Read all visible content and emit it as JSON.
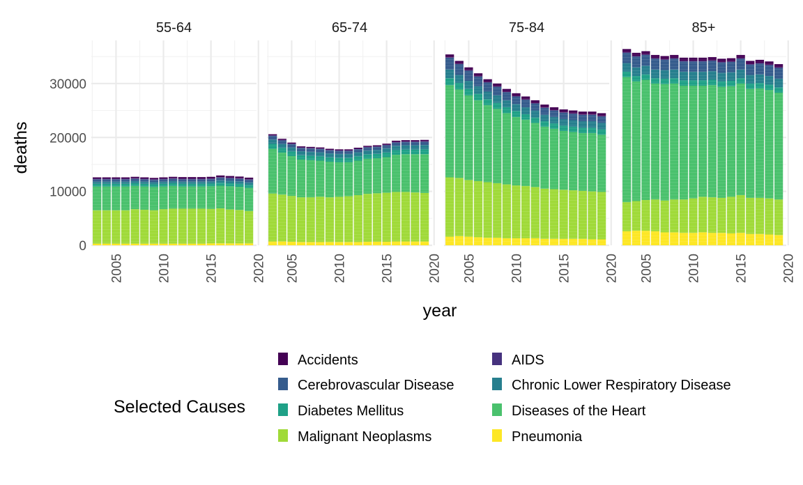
{
  "chart_data": {
    "type": "bar",
    "stacked": true,
    "xlabel": "year",
    "ylabel": "deaths",
    "x_ticks": [
      2005,
      2010,
      2015,
      2020
    ],
    "y_ticks": [
      0,
      10000,
      20000,
      30000
    ],
    "ylim": [
      0,
      38000
    ],
    "xlim": [
      2002.4,
      2019.8
    ],
    "grid": true,
    "legend": {
      "title": "Selected Causes",
      "placement": "bottom",
      "entries": [
        {
          "name": "Accidents",
          "color": "#440154"
        },
        {
          "name": "AIDS",
          "color": "#46327e"
        },
        {
          "name": "Cerebrovascular Disease",
          "color": "#365c8d"
        },
        {
          "name": "Chronic Lower Respiratory Disease",
          "color": "#277f8e"
        },
        {
          "name": "Diabetes Mellitus",
          "color": "#1fa187"
        },
        {
          "name": "Diseases of the Heart",
          "color": "#4ac16d"
        },
        {
          "name": "Malignant Neoplasms",
          "color": "#a0da39"
        },
        {
          "name": "Pneumonia",
          "color": "#fde725"
        }
      ]
    },
    "stack_order_bottom_to_top": [
      "Pneumonia",
      "Malignant Neoplasms",
      "Diseases of the Heart",
      "Diabetes Mellitus",
      "Chronic Lower Respiratory Disease",
      "Cerebrovascular Disease",
      "AIDS",
      "Accidents"
    ],
    "years": [
      2003,
      2004,
      2005,
      2006,
      2007,
      2008,
      2009,
      2010,
      2011,
      2012,
      2013,
      2014,
      2015,
      2016,
      2017,
      2018,
      2019
    ],
    "panels": [
      {
        "label": "55-64",
        "series": [
          {
            "name": "Pneumonia",
            "values": [
              300,
              300,
              300,
              300,
              300,
              300,
              300,
              300,
              300,
              300,
              300,
              300,
              350,
              350,
              350,
              350,
              350
            ]
          },
          {
            "name": "Malignant Neoplasms",
            "values": [
              6200,
              6200,
              6200,
              6200,
              6400,
              6300,
              6200,
              6400,
              6500,
              6500,
              6500,
              6500,
              6400,
              6500,
              6300,
              6200,
              6000
            ]
          },
          {
            "name": "Diseases of the Heart",
            "values": [
              4400,
              4400,
              4400,
              4400,
              4300,
              4300,
              4300,
              4200,
              4200,
              4100,
              4100,
              4100,
              4200,
              4200,
              4300,
              4300,
              4300
            ]
          },
          {
            "name": "Diabetes Mellitus",
            "values": [
              500,
              500,
              500,
              500,
              500,
              500,
              500,
              500,
              500,
              500,
              500,
              500,
              500,
              550,
              550,
              550,
              550
            ]
          },
          {
            "name": "Chronic Lower Respiratory Disease",
            "values": [
              400,
              400,
              400,
              400,
              400,
              400,
              400,
              400,
              400,
              400,
              400,
              400,
              400,
              450,
              450,
              450,
              450
            ]
          },
          {
            "name": "Cerebrovascular Disease",
            "values": [
              400,
              400,
              400,
              400,
              400,
              400,
              400,
              400,
              400,
              400,
              400,
              400,
              400,
              450,
              450,
              450,
              450
            ]
          },
          {
            "name": "AIDS",
            "values": [
              150,
              150,
              150,
              150,
              150,
              150,
              150,
              150,
              150,
              150,
              150,
              150,
              150,
              150,
              150,
              150,
              150
            ]
          },
          {
            "name": "Accidents",
            "values": [
              250,
              250,
              250,
              250,
              250,
              250,
              250,
              250,
              250,
              300,
              300,
              300,
              300,
              300,
              300,
              300,
              300
            ]
          }
        ]
      },
      {
        "label": "65-74",
        "series": [
          {
            "name": "Pneumonia",
            "values": [
              700,
              700,
              650,
              600,
              600,
              600,
              600,
              600,
              600,
              600,
              650,
              650,
              650,
              700,
              700,
              700,
              700
            ]
          },
          {
            "name": "Malignant Neoplasms",
            "values": [
              8900,
              8700,
              8500,
              8300,
              8300,
              8400,
              8300,
              8400,
              8500,
              8700,
              8900,
              9000,
              9100,
              9200,
              9200,
              9100,
              9000
            ]
          },
          {
            "name": "Diseases of the Heart",
            "values": [
              8300,
              7800,
              7400,
              7000,
              6900,
              6700,
              6600,
              6400,
              6300,
              6400,
              6500,
              6500,
              6600,
              6900,
              7000,
              7100,
              7200
            ]
          },
          {
            "name": "Diabetes Mellitus",
            "values": [
              900,
              850,
              850,
              800,
              800,
              800,
              800,
              800,
              800,
              800,
              800,
              800,
              850,
              850,
              850,
              850,
              900
            ]
          },
          {
            "name": "Chronic Lower Respiratory Disease",
            "values": [
              800,
              750,
              750,
              750,
              750,
              750,
              750,
              750,
              750,
              750,
              750,
              750,
              800,
              800,
              800,
              800,
              800
            ]
          },
          {
            "name": "Cerebrovascular Disease",
            "values": [
              700,
              650,
              600,
              600,
              600,
              600,
              550,
              550,
              550,
              550,
              550,
              550,
              550,
              600,
              600,
              600,
              600
            ]
          },
          {
            "name": "AIDS",
            "values": [
              100,
              100,
              100,
              100,
              100,
              100,
              100,
              100,
              100,
              100,
              100,
              100,
              100,
              100,
              100,
              100,
              100
            ]
          },
          {
            "name": "Accidents",
            "values": [
              200,
              200,
              200,
              200,
              200,
              200,
              200,
              200,
              200,
              200,
              200,
              200,
              200,
              250,
              250,
              250,
              250
            ]
          }
        ]
      },
      {
        "label": "75-84",
        "series": [
          {
            "name": "Pneumonia",
            "values": [
              1600,
              1700,
              1600,
              1500,
              1400,
              1400,
              1300,
              1300,
              1300,
              1300,
              1200,
              1200,
              1200,
              1200,
              1200,
              1100,
              1100
            ]
          },
          {
            "name": "Malignant Neoplasms",
            "values": [
              11000,
              10800,
              10500,
              10400,
              10300,
              10100,
              10000,
              9800,
              9700,
              9500,
              9300,
              9200,
              9100,
              9000,
              8900,
              8900,
              8800
            ]
          },
          {
            "name": "Diseases of the Heart",
            "values": [
              17100,
              16400,
              15700,
              15000,
              14300,
              13800,
              13200,
              12700,
              12300,
              11900,
              11500,
              11200,
              10900,
              10800,
              10700,
              10800,
              10600
            ]
          },
          {
            "name": "Diabetes Mellitus",
            "values": [
              1300,
              1200,
              1200,
              1200,
              1100,
              1100,
              1100,
              1100,
              1000,
              1000,
              1000,
              1000,
              1000,
              1000,
              1000,
              1000,
              1000
            ]
          },
          {
            "name": "Chronic Lower Respiratory Disease",
            "values": [
              1600,
              1500,
              1500,
              1400,
              1400,
              1400,
              1300,
              1300,
              1300,
              1300,
              1200,
              1200,
              1200,
              1200,
              1200,
              1200,
              1200
            ]
          },
          {
            "name": "Cerebrovascular Disease",
            "values": [
              2200,
              2000,
              1900,
              1800,
              1700,
              1600,
              1500,
              1400,
              1400,
              1300,
              1300,
              1200,
              1200,
              1200,
              1200,
              1200,
              1200
            ]
          },
          {
            "name": "AIDS",
            "values": [
              50,
              50,
              50,
              50,
              50,
              50,
              50,
              50,
              50,
              50,
              50,
              50,
              50,
              50,
              50,
              50,
              50
            ]
          },
          {
            "name": "Accidents",
            "values": [
              550,
              550,
              550,
              550,
              550,
              550,
              550,
              550,
              550,
              550,
              550,
              550,
              550,
              550,
              550,
              550,
              550
            ]
          }
        ]
      },
      {
        "label": "85+",
        "series": [
          {
            "name": "Pneumonia",
            "values": [
              2600,
              2700,
              2700,
              2600,
              2400,
              2400,
              2300,
              2300,
              2400,
              2300,
              2300,
              2200,
              2300,
              2100,
              2100,
              2000,
              1900
            ]
          },
          {
            "name": "Malignant Neoplasms",
            "values": [
              5400,
              5500,
              5700,
              5900,
              5900,
              6100,
              6200,
              6400,
              6600,
              6600,
              6500,
              6800,
              7000,
              6700,
              6700,
              6700,
              6600
            ]
          },
          {
            "name": "Diseases of the Heart",
            "values": [
              23200,
              22200,
              22300,
              21500,
              21600,
              21500,
              21100,
              20900,
              20600,
              20800,
              20600,
              20500,
              20700,
              20200,
              20300,
              20100,
              19800
            ]
          },
          {
            "name": "Diabetes Mellitus",
            "values": [
              1000,
              1000,
              1000,
              1000,
              1000,
              1000,
              1000,
              1000,
              1000,
              1000,
              1000,
              1000,
              1000,
              1000,
              1000,
              1000,
              1000
            ]
          },
          {
            "name": "Chronic Lower Respiratory Disease",
            "values": [
              1600,
              1600,
              1600,
              1600,
              1600,
              1600,
              1600,
              1600,
              1600,
              1600,
              1600,
              1600,
              1600,
              1600,
              1600,
              1600,
              1600
            ]
          },
          {
            "name": "Cerebrovascular Disease",
            "values": [
              1900,
              2000,
              2000,
              2000,
              1900,
              2000,
              1900,
              1900,
              1900,
              1900,
              1900,
              1900,
              2000,
              1900,
              2000,
              2000,
              2000
            ]
          },
          {
            "name": "AIDS",
            "values": [
              100,
              100,
              100,
              100,
              100,
              100,
              100,
              100,
              100,
              100,
              100,
              100,
              100,
              100,
              100,
              100,
              100
            ]
          },
          {
            "name": "Accidents",
            "values": [
              600,
              600,
              600,
              600,
              600,
              600,
              600,
              600,
              600,
              600,
              600,
              600,
              600,
              600,
              600,
              600,
              600
            ]
          }
        ]
      }
    ]
  }
}
